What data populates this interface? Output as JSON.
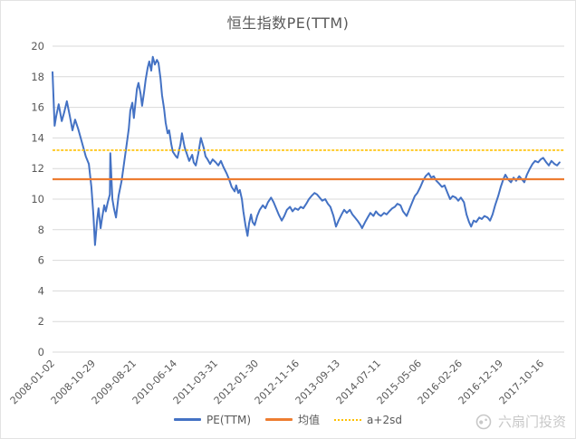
{
  "title": "恒生指数PE(TTM)",
  "legend": {
    "pe": "PE(TTM)",
    "mean": "均值",
    "band": "a+2sd"
  },
  "watermark": "六扇门投资",
  "colors": {
    "pe": "#4472C4",
    "mean": "#ED7D31",
    "band": "#FFC000",
    "text": "#595959",
    "grid": "#D9D9D9",
    "watermark": "#C8C8C8"
  },
  "chart_data": {
    "type": "line",
    "title": "恒生指数PE(TTM)",
    "xlabel": "",
    "ylabel": "",
    "ylim": [
      0,
      20
    ],
    "y_ticks": [
      0,
      2,
      4,
      6,
      8,
      10,
      12,
      14,
      16,
      18,
      20
    ],
    "grid": "horizontal",
    "legend_position": "bottom",
    "x_axis_type": "date",
    "x_tick_labels": [
      "2008-01-02",
      "2008-10-29",
      "2009-08-21",
      "2010-06-14",
      "2011-03-31",
      "2012-01-30",
      "2012-11-16",
      "2013-09-13",
      "2014-07-11",
      "2015-05-06",
      "2016-02-26",
      "2016-12-19",
      "2017-10-16"
    ],
    "x_tick_t": [
      0,
      0.0796,
      0.1593,
      0.2389,
      0.3186,
      0.3982,
      0.4779,
      0.5575,
      0.6372,
      0.7168,
      0.7965,
      0.8761,
      0.9558
    ],
    "series": [
      {
        "name": "PE(TTM)",
        "type": "line",
        "color": "#4472C4",
        "width": 2,
        "points": [
          [
            0,
            18.3
          ],
          [
            0.004,
            14.8
          ],
          [
            0.007,
            15.4
          ],
          [
            0.012,
            16.2
          ],
          [
            0.018,
            15.1
          ],
          [
            0.023,
            15.7
          ],
          [
            0.028,
            16.4
          ],
          [
            0.034,
            15.4
          ],
          [
            0.039,
            14.5
          ],
          [
            0.044,
            15.2
          ],
          [
            0.05,
            14.6
          ],
          [
            0.055,
            14
          ],
          [
            0.06,
            13.4
          ],
          [
            0.065,
            12.8
          ],
          [
            0.071,
            12.3
          ],
          [
            0.076,
            10.8
          ],
          [
            0.08,
            8.9
          ],
          [
            0.083,
            7
          ],
          [
            0.087,
            8.6
          ],
          [
            0.09,
            9.4
          ],
          [
            0.094,
            8.1
          ],
          [
            0.097,
            8.8
          ],
          [
            0.101,
            9.6
          ],
          [
            0.104,
            9.2
          ],
          [
            0.108,
            9.8
          ],
          [
            0.112,
            10.3
          ],
          [
            0.113,
            13
          ],
          [
            0.117,
            10
          ],
          [
            0.12,
            9.4
          ],
          [
            0.124,
            8.8
          ],
          [
            0.129,
            10.2
          ],
          [
            0.135,
            11.2
          ],
          [
            0.14,
            12.4
          ],
          [
            0.145,
            13.6
          ],
          [
            0.149,
            14.6
          ],
          [
            0.152,
            15.8
          ],
          [
            0.156,
            16.3
          ],
          [
            0.159,
            15.3
          ],
          [
            0.165,
            17.2
          ],
          [
            0.168,
            17.6
          ],
          [
            0.172,
            16.9
          ],
          [
            0.175,
            16.1
          ],
          [
            0.179,
            17
          ],
          [
            0.182,
            17.8
          ],
          [
            0.186,
            18.6
          ],
          [
            0.189,
            19
          ],
          [
            0.193,
            18.4
          ],
          [
            0.196,
            19.3
          ],
          [
            0.2,
            18.8
          ],
          [
            0.204,
            19.1
          ],
          [
            0.207,
            18.9
          ],
          [
            0.211,
            17.9
          ],
          [
            0.214,
            16.8
          ],
          [
            0.218,
            15.9
          ],
          [
            0.221,
            15
          ],
          [
            0.225,
            14.3
          ],
          [
            0.228,
            14.5
          ],
          [
            0.232,
            13.6
          ],
          [
            0.235,
            13.1
          ],
          [
            0.241,
            12.8
          ],
          [
            0.244,
            12.7
          ],
          [
            0.25,
            13.6
          ],
          [
            0.253,
            14.3
          ],
          [
            0.258,
            13.4
          ],
          [
            0.264,
            12.8
          ],
          [
            0.267,
            12.5
          ],
          [
            0.273,
            12.9
          ],
          [
            0.276,
            12.4
          ],
          [
            0.28,
            12.2
          ],
          [
            0.285,
            13
          ],
          [
            0.29,
            14
          ],
          [
            0.296,
            13.3
          ],
          [
            0.299,
            12.8
          ],
          [
            0.303,
            12.6
          ],
          [
            0.308,
            12.3
          ],
          [
            0.313,
            12.6
          ],
          [
            0.319,
            12.4
          ],
          [
            0.324,
            12.2
          ],
          [
            0.329,
            12.5
          ],
          [
            0.334,
            12.1
          ],
          [
            0.34,
            11.7
          ],
          [
            0.345,
            11.3
          ],
          [
            0.35,
            10.8
          ],
          [
            0.356,
            10.5
          ],
          [
            0.359,
            10.9
          ],
          [
            0.363,
            10.4
          ],
          [
            0.366,
            10.6
          ],
          [
            0.37,
            10
          ],
          [
            0.373,
            9.2
          ],
          [
            0.377,
            8.3
          ],
          [
            0.381,
            7.6
          ],
          [
            0.384,
            8.4
          ],
          [
            0.388,
            9
          ],
          [
            0.391,
            8.5
          ],
          [
            0.395,
            8.3
          ],
          [
            0.4,
            8.9
          ],
          [
            0.405,
            9.3
          ],
          [
            0.411,
            9.6
          ],
          [
            0.416,
            9.4
          ],
          [
            0.421,
            9.8
          ],
          [
            0.427,
            10.1
          ],
          [
            0.432,
            9.8
          ],
          [
            0.437,
            9.4
          ],
          [
            0.442,
            9
          ],
          [
            0.448,
            8.6
          ],
          [
            0.453,
            8.9
          ],
          [
            0.458,
            9.3
          ],
          [
            0.464,
            9.5
          ],
          [
            0.469,
            9.2
          ],
          [
            0.474,
            9.4
          ],
          [
            0.48,
            9.3
          ],
          [
            0.485,
            9.5
          ],
          [
            0.49,
            9.4
          ],
          [
            0.496,
            9.7
          ],
          [
            0.501,
            10
          ],
          [
            0.506,
            10.2
          ],
          [
            0.512,
            10.4
          ],
          [
            0.517,
            10.3
          ],
          [
            0.522,
            10.1
          ],
          [
            0.527,
            9.9
          ],
          [
            0.533,
            10
          ],
          [
            0.538,
            9.7
          ],
          [
            0.543,
            9.5
          ],
          [
            0.549,
            8.9
          ],
          [
            0.554,
            8.2
          ],
          [
            0.559,
            8.6
          ],
          [
            0.565,
            9
          ],
          [
            0.57,
            9.3
          ],
          [
            0.575,
            9.1
          ],
          [
            0.581,
            9.3
          ],
          [
            0.586,
            9
          ],
          [
            0.591,
            8.8
          ],
          [
            0.596,
            8.6
          ],
          [
            0.602,
            8.3
          ],
          [
            0.605,
            8.1
          ],
          [
            0.611,
            8.5
          ],
          [
            0.616,
            8.8
          ],
          [
            0.621,
            9.1
          ],
          [
            0.627,
            8.9
          ],
          [
            0.632,
            9.2
          ],
          [
            0.637,
            9
          ],
          [
            0.642,
            8.9
          ],
          [
            0.648,
            9.1
          ],
          [
            0.653,
            9
          ],
          [
            0.658,
            9.2
          ],
          [
            0.664,
            9.4
          ],
          [
            0.669,
            9.5
          ],
          [
            0.674,
            9.7
          ],
          [
            0.68,
            9.6
          ],
          [
            0.685,
            9.2
          ],
          [
            0.692,
            8.9
          ],
          [
            0.697,
            9.3
          ],
          [
            0.703,
            9.8
          ],
          [
            0.708,
            10.2
          ],
          [
            0.713,
            10.4
          ],
          [
            0.719,
            10.8
          ],
          [
            0.724,
            11.2
          ],
          [
            0.729,
            11.5
          ],
          [
            0.735,
            11.7
          ],
          [
            0.74,
            11.4
          ],
          [
            0.745,
            11.5
          ],
          [
            0.75,
            11.2
          ],
          [
            0.756,
            11
          ],
          [
            0.761,
            10.8
          ],
          [
            0.766,
            10.9
          ],
          [
            0.772,
            10.4
          ],
          [
            0.777,
            10
          ],
          [
            0.782,
            10.2
          ],
          [
            0.788,
            10.1
          ],
          [
            0.793,
            9.9
          ],
          [
            0.798,
            10.1
          ],
          [
            0.804,
            9.8
          ],
          [
            0.809,
            9
          ],
          [
            0.814,
            8.5
          ],
          [
            0.818,
            8.2
          ],
          [
            0.823,
            8.6
          ],
          [
            0.828,
            8.5
          ],
          [
            0.834,
            8.8
          ],
          [
            0.839,
            8.7
          ],
          [
            0.844,
            8.9
          ],
          [
            0.85,
            8.8
          ],
          [
            0.855,
            8.6
          ],
          [
            0.86,
            9
          ],
          [
            0.865,
            9.6
          ],
          [
            0.871,
            10.2
          ],
          [
            0.876,
            10.8
          ],
          [
            0.881,
            11.3
          ],
          [
            0.885,
            11.6
          ],
          [
            0.89,
            11.3
          ],
          [
            0.896,
            11.1
          ],
          [
            0.901,
            11.4
          ],
          [
            0.906,
            11.2
          ],
          [
            0.912,
            11.5
          ],
          [
            0.917,
            11.3
          ],
          [
            0.922,
            11.1
          ],
          [
            0.927,
            11.6
          ],
          [
            0.933,
            12
          ],
          [
            0.938,
            12.3
          ],
          [
            0.943,
            12.5
          ],
          [
            0.949,
            12.4
          ],
          [
            0.954,
            12.6
          ],
          [
            0.959,
            12.7
          ],
          [
            0.965,
            12.4
          ],
          [
            0.97,
            12.2
          ],
          [
            0.975,
            12.5
          ],
          [
            0.981,
            12.3
          ],
          [
            0.986,
            12.2
          ],
          [
            0.991,
            12.4
          ]
        ]
      },
      {
        "name": "均值",
        "type": "hline",
        "color": "#ED7D31",
        "width": 2.2,
        "value": 11.3
      },
      {
        "name": "a+2sd",
        "type": "hline",
        "color": "#FFC000",
        "width": 1.6,
        "value": 13.2,
        "style": "dotted"
      }
    ]
  }
}
